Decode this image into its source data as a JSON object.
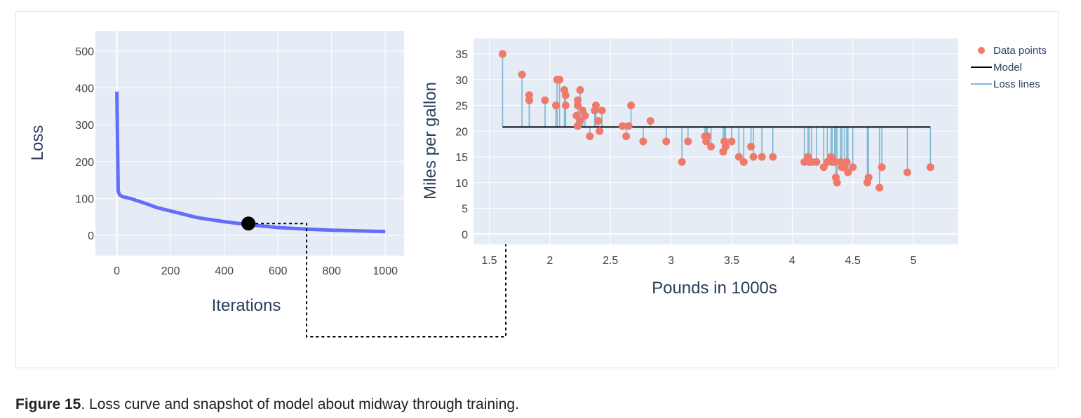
{
  "caption": {
    "label": "Figure 15",
    "text": ". Loss curve and snapshot of model about midway through training."
  },
  "colors": {
    "plot_bg": "#e5ecf6",
    "grid": "#ffffff",
    "loss_line": "#636efa",
    "marker": "#000000",
    "points": "#ef7a6b",
    "model": "#000000",
    "loss_lines": "#7fb6d1"
  },
  "chart_data": [
    {
      "type": "line",
      "xlabel": "Iterations",
      "ylabel": "Loss",
      "xlim": [
        -80,
        1070
      ],
      "ylim": [
        -55,
        555
      ],
      "xticks": [
        0,
        200,
        400,
        600,
        800,
        1000
      ],
      "yticks": [
        0,
        100,
        200,
        300,
        400,
        500
      ],
      "grid": true,
      "x": [
        0,
        5,
        10,
        20,
        50,
        100,
        150,
        200,
        300,
        400,
        500,
        600,
        700,
        800,
        900,
        1000
      ],
      "y": [
        390,
        120,
        110,
        105,
        100,
        88,
        75,
        66,
        48,
        37,
        28,
        21,
        17,
        14,
        12,
        10
      ],
      "highlight": {
        "x": 490,
        "y": 32
      }
    },
    {
      "type": "scatter",
      "xlabel": "Pounds in 1000s",
      "ylabel": "Miles per gallon",
      "xlim": [
        1.37,
        5.37
      ],
      "ylim": [
        -2,
        38
      ],
      "xticks": [
        1.5,
        2,
        2.5,
        3,
        3.5,
        4,
        4.5,
        5
      ],
      "xtick_labels": [
        "1.5",
        "2",
        "2.5",
        "3",
        "3.5",
        "4",
        "4.5",
        "5"
      ],
      "yticks": [
        0,
        5,
        10,
        15,
        20,
        25,
        30,
        35
      ],
      "grid": true,
      "legend": {
        "position": "top-right",
        "entries": [
          "Data points",
          "Model",
          "Loss lines"
        ]
      },
      "model": {
        "y": 20.8,
        "x_range": [
          1.61,
          5.14
        ]
      },
      "points": [
        [
          1.61,
          35
        ],
        [
          1.77,
          31
        ],
        [
          1.83,
          27
        ],
        [
          1.83,
          26
        ],
        [
          1.96,
          26
        ],
        [
          2.05,
          25
        ],
        [
          2.06,
          30
        ],
        [
          2.08,
          30
        ],
        [
          2.12,
          28
        ],
        [
          2.13,
          27
        ],
        [
          2.13,
          25
        ],
        [
          2.22,
          23
        ],
        [
          2.23,
          26
        ],
        [
          2.23,
          25
        ],
        [
          2.23,
          21
        ],
        [
          2.25,
          28
        ],
        [
          2.25,
          22
        ],
        [
          2.27,
          24
        ],
        [
          2.29,
          23
        ],
        [
          2.33,
          19
        ],
        [
          2.37,
          24
        ],
        [
          2.38,
          25
        ],
        [
          2.4,
          22
        ],
        [
          2.41,
          20
        ],
        [
          2.43,
          24
        ],
        [
          2.6,
          21
        ],
        [
          2.63,
          19
        ],
        [
          2.65,
          21
        ],
        [
          2.67,
          25
        ],
        [
          2.77,
          18
        ],
        [
          2.83,
          22
        ],
        [
          2.96,
          18
        ],
        [
          3.09,
          14
        ],
        [
          3.14,
          18
        ],
        [
          3.28,
          19
        ],
        [
          3.29,
          18
        ],
        [
          3.3,
          19
        ],
        [
          3.33,
          17
        ],
        [
          3.43,
          16
        ],
        [
          3.44,
          18
        ],
        [
          3.45,
          17
        ],
        [
          3.5,
          18
        ],
        [
          3.56,
          15
        ],
        [
          3.6,
          14
        ],
        [
          3.66,
          17
        ],
        [
          3.68,
          15
        ],
        [
          3.75,
          15
        ],
        [
          3.84,
          15
        ],
        [
          4.1,
          14
        ],
        [
          4.13,
          15
        ],
        [
          4.14,
          14
        ],
        [
          4.16,
          14
        ],
        [
          4.2,
          14
        ],
        [
          4.26,
          13
        ],
        [
          4.29,
          14
        ],
        [
          4.32,
          15
        ],
        [
          4.33,
          14
        ],
        [
          4.35,
          14
        ],
        [
          4.36,
          11
        ],
        [
          4.37,
          10
        ],
        [
          4.4,
          14
        ],
        [
          4.41,
          13
        ],
        [
          4.43,
          13
        ],
        [
          4.45,
          14
        ],
        [
          4.46,
          12
        ],
        [
          4.5,
          13
        ],
        [
          4.62,
          10
        ],
        [
          4.63,
          11
        ],
        [
          4.72,
          9
        ],
        [
          4.74,
          13
        ],
        [
          4.95,
          12
        ],
        [
          5.14,
          13
        ]
      ]
    }
  ]
}
